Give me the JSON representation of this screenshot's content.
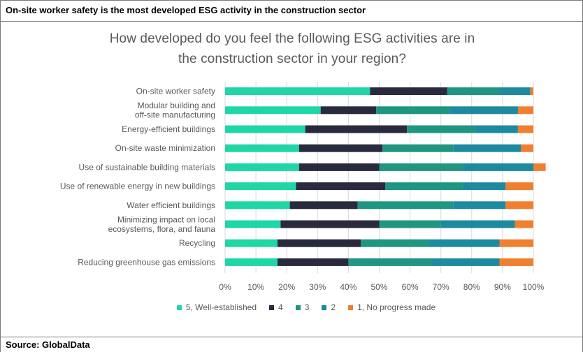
{
  "header": {
    "title": "On-site worker safety is the most developed ESG activity in the construction sector"
  },
  "footer": {
    "source": "Source: GlobalData"
  },
  "colors": {
    "series": [
      "#1fd6a6",
      "#2a2a3e",
      "#1e9680",
      "#1e8aa0",
      "#f07f30"
    ],
    "grid": "#d9d9d9",
    "label": "#595959"
  },
  "chart_data": {
    "type": "bar",
    "orientation": "horizontal",
    "stacked": true,
    "title_lines": [
      "How developed do you feel the following ESG activities are in",
      "the construction sector in your region?"
    ],
    "xlim": [
      0,
      100
    ],
    "x_ticks": [
      "0%",
      "10%",
      "20%",
      "30%",
      "40%",
      "50%",
      "60%",
      "70%",
      "80%",
      "90%",
      "100%"
    ],
    "grid": true,
    "legend_position": "bottom",
    "categories": [
      [
        "On-site worker safety"
      ],
      [
        "Modular building and",
        "off-site manufacturing"
      ],
      [
        "Energy-efficient buildings"
      ],
      [
        "On-site waste minimization"
      ],
      [
        "Use of sustainable building materials"
      ],
      [
        "Use of renewable energy in new buildings"
      ],
      [
        "Water efficient buildings"
      ],
      [
        "Minimizing impact on local",
        "ecosystems, flora, and fauna"
      ],
      [
        "Recycling"
      ],
      [
        "Reducing greenhouse gas emissions"
      ]
    ],
    "series": [
      {
        "name": "5, Well-established",
        "values": [
          47,
          31,
          26,
          24,
          24,
          23,
          21,
          18,
          17,
          17
        ]
      },
      {
        "name": "4",
        "values": [
          25,
          18,
          33,
          27,
          26,
          29,
          22,
          32,
          27,
          23
        ]
      },
      {
        "name": "3",
        "values": [
          17,
          24,
          22,
          23,
          27,
          25,
          31,
          20,
          22,
          27
        ]
      },
      {
        "name": "2",
        "values": [
          10,
          22,
          14,
          22,
          23,
          14,
          17,
          24,
          23,
          22
        ]
      },
      {
        "name": "1, No progress made",
        "values": [
          1,
          5,
          5,
          4,
          4,
          9,
          9,
          6,
          11,
          11
        ]
      }
    ]
  }
}
